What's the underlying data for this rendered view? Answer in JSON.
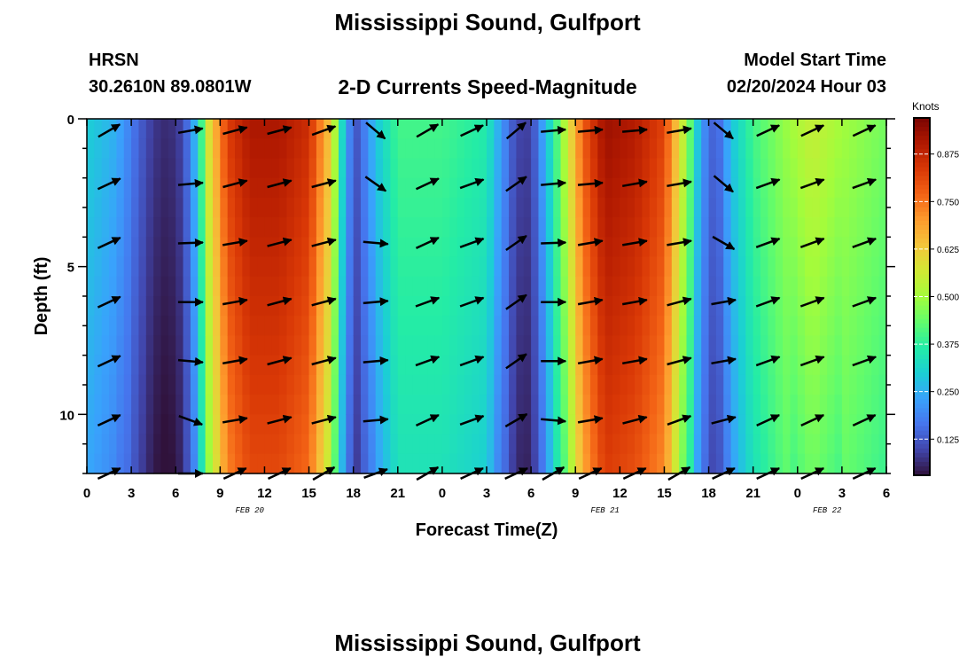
{
  "title": "Mississippi Sound, Gulfport",
  "footer_title": "Mississippi Sound, Gulfport",
  "model": "HRSN",
  "station_coords": "30.2610N  89.0801W",
  "subtitle": "2-D Currents Speed-Magnitude",
  "model_start_label": "Model Start Time",
  "model_start_value": "02/20/2024 Hour 03",
  "chart_data": {
    "type": "heatmap",
    "title": "2-D Currents Speed-Magnitude",
    "xlabel": "Forecast Time(Z)",
    "ylabel": "Depth (ft)",
    "x_range_hours": [
      0,
      54
    ],
    "x_tick_labels": [
      "0",
      "3",
      "6",
      "9",
      "12",
      "15",
      "18",
      "21",
      "0",
      "3",
      "6",
      "9",
      "12",
      "15",
      "18",
      "21",
      "0",
      "3",
      "6"
    ],
    "date_labels": [
      {
        "hour": 11,
        "text": "FEB 20"
      },
      {
        "hour": 35,
        "text": "FEB 21"
      },
      {
        "hour": 50,
        "text": "FEB 22"
      }
    ],
    "y_range_ft": [
      0,
      12
    ],
    "y_tick_labels": [
      "0",
      "5",
      "10"
    ],
    "colorbar": {
      "unit": "Knots",
      "range": [
        0.03,
        0.97
      ],
      "ticks": [
        "0.125",
        "0.250",
        "0.375",
        "0.500",
        "0.625",
        "0.750",
        "0.875"
      ],
      "tick_values": [
        0.125,
        0.25,
        0.375,
        0.5,
        0.625,
        0.75,
        0.875
      ]
    },
    "colormap": [
      "#30123b",
      "#4145ab",
      "#4675ed",
      "#39a2fc",
      "#1bcfd4",
      "#24eca6",
      "#61fc6c",
      "#a4fc3b",
      "#d1e834",
      "#f3c63a",
      "#fe9b2d",
      "#f36315",
      "#d93806",
      "#b11901",
      "#7a0402"
    ],
    "speed_profile_hours": [
      0,
      2,
      3.5,
      4.5,
      5.5,
      6.5,
      7.5,
      8.2,
      9.5,
      11,
      13,
      15,
      16.5,
      17.5,
      18.3,
      19.5,
      21,
      24,
      27,
      28,
      29,
      30,
      31.5,
      33.5,
      35,
      37,
      39,
      40.5,
      41.5,
      42.5,
      43.5,
      45,
      47,
      49,
      51,
      54
    ],
    "speed_profile_knots": [
      0.3,
      0.25,
      0.14,
      0.08,
      0.06,
      0.1,
      0.3,
      0.58,
      0.83,
      0.91,
      0.91,
      0.86,
      0.62,
      0.22,
      0.12,
      0.28,
      0.4,
      0.4,
      0.36,
      0.22,
      0.1,
      0.09,
      0.36,
      0.78,
      0.93,
      0.9,
      0.82,
      0.5,
      0.22,
      0.12,
      0.28,
      0.4,
      0.48,
      0.55,
      0.5,
      0.45
    ],
    "vector_rows_ft": [
      0.4,
      2.2,
      4.2,
      6.2,
      8.2,
      10.2,
      12.0
    ],
    "vector_cols_hours": [
      1.5,
      7,
      10,
      13,
      16,
      19.5,
      23,
      26,
      29,
      31.5,
      34,
      37,
      40,
      43,
      46,
      49,
      52.5
    ],
    "vector_directions_deg": [
      [
        30,
        10,
        15,
        15,
        20,
        320,
        30,
        25,
        40,
        5,
        5,
        5,
        10,
        320,
        25,
        25,
        25
      ],
      [
        25,
        5,
        15,
        15,
        15,
        325,
        25,
        20,
        35,
        5,
        5,
        10,
        10,
        320,
        20,
        20,
        20
      ],
      [
        25,
        2,
        10,
        15,
        15,
        355,
        25,
        20,
        35,
        2,
        10,
        10,
        10,
        330,
        20,
        20,
        20
      ],
      [
        25,
        0,
        10,
        15,
        15,
        5,
        20,
        20,
        35,
        0,
        10,
        10,
        15,
        10,
        20,
        20,
        20
      ],
      [
        25,
        355,
        10,
        15,
        15,
        5,
        20,
        20,
        35,
        0,
        10,
        10,
        15,
        10,
        20,
        20,
        20
      ],
      [
        25,
        340,
        10,
        15,
        15,
        5,
        25,
        20,
        30,
        355,
        10,
        15,
        20,
        15,
        25,
        25,
        25
      ],
      [
        25,
        0,
        25,
        25,
        30,
        20,
        30,
        25,
        25,
        30,
        25,
        25,
        30,
        25,
        25,
        25,
        25
      ]
    ]
  }
}
